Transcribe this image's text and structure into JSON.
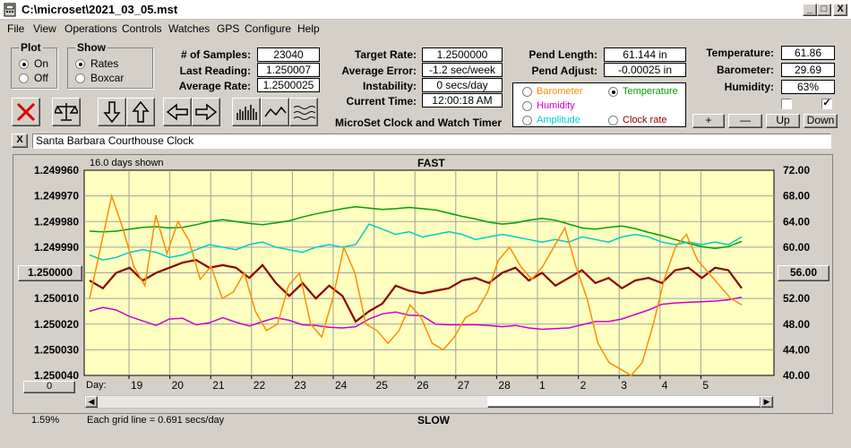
{
  "window": {
    "title": "C:\\microset\\2021_03_05.mst",
    "minimize": "_",
    "maximize": "□",
    "close": "X"
  },
  "menu": [
    "File",
    "View",
    "Operations",
    "Controls",
    "Watches",
    "GPS",
    "Configure",
    "Help"
  ],
  "plot": {
    "title": "Plot",
    "on": "On",
    "off": "Off",
    "selected": "On"
  },
  "show": {
    "title": "Show",
    "rates": "Rates",
    "boxcar": "Boxcar",
    "selected": "Rates"
  },
  "stats": {
    "samples_label": "# of Samples:",
    "samples": "23040",
    "last_label": "Last Reading:",
    "last": "1.250007",
    "avg_label": "Average Rate:",
    "avg": "1.2500025",
    "target_label": "Target Rate:",
    "target": "1.2500000",
    "avgerr_label": "Average Error:",
    "avgerr": "-1.2 sec/week",
    "instab_label": "Instability:",
    "instab": "0 secs/day",
    "time_label": "Current Time:",
    "time": "12:00:18 AM",
    "pendlen_label": "Pend Length:",
    "pendlen": "61.144 in",
    "pendadj_label": "Pend Adjust:",
    "pendadj": "-0.00025 in",
    "temp_label": "Temperature:",
    "temp": "61.86",
    "baro_label": "Barometer:",
    "baro": "29.69",
    "hum_label": "Humidity:",
    "hum": "63%"
  },
  "app_title": "MicroSet Clock and Watch Timer",
  "series_select": {
    "barometer": "Barometer",
    "temperature": "Temperature",
    "humidity": "Humidity",
    "amplitude": "Amplitude",
    "clockrate": "Clock rate",
    "selected": "Temperature"
  },
  "colors": {
    "barometer": "#ff8c00",
    "temperature": "#00a000",
    "humidity": "#cc00cc",
    "amplitude": "#00cccc",
    "clockrate": "#8b0000",
    "plot_bg": "#ffffc0"
  },
  "right_buttons": {
    "plus": "+",
    "minus": "—",
    "up": "Up",
    "down": "Down"
  },
  "clock_name": "Santa Barbara Courthouse Clock",
  "close_x": "X",
  "graph": {
    "days_shown": "16.0 days shown",
    "fast": "FAST",
    "slow": "SLOW",
    "left_button": "1.250000",
    "right_button": "56.00",
    "zero_button": "0",
    "percent": "1.59%",
    "grid_note": "Each grid line = 0.691 secs/day",
    "day_label": "Day:"
  },
  "chart_data": {
    "type": "line",
    "x_label": "Day:",
    "x_ticks": [
      "19",
      "20",
      "21",
      "22",
      "23",
      "24",
      "25",
      "26",
      "27",
      "28",
      "1",
      "2",
      "3",
      "4",
      "5"
    ],
    "y_left_ticks": [
      "1.249960",
      "1.249970",
      "1.249980",
      "1.249990",
      "1.250000",
      "1.250010",
      "1.250020",
      "1.250030",
      "1.250040"
    ],
    "y_right_ticks": [
      "72.00",
      "68.00",
      "64.00",
      "60.00",
      "56.00",
      "52.00",
      "48.00",
      "44.00",
      "40.00"
    ],
    "y_left_range": [
      1.24996,
      1.25004
    ],
    "y_right_range": [
      40,
      72
    ],
    "grid": true,
    "series": [
      {
        "name": "Temperature",
        "axis": "right",
        "color": "#00a000",
        "values": [
          62.5,
          62.4,
          62.5,
          62.8,
          63.1,
          63.2,
          63.0,
          63.1,
          63.5,
          64.0,
          64.3,
          64.0,
          63.7,
          63.5,
          63.8,
          64.1,
          64.7,
          65.2,
          65.6,
          66.0,
          66.3,
          66.1,
          65.9,
          66.0,
          66.2,
          66.0,
          65.8,
          65.3,
          64.8,
          64.4,
          63.9,
          63.6,
          63.8,
          64.2,
          64.5,
          64.2,
          63.6,
          63.0,
          62.8,
          63.1,
          63.3,
          62.9,
          62.3,
          61.8,
          61.2,
          60.6,
          60.1,
          59.8,
          60.1,
          60.9
        ]
      },
      {
        "name": "Amplitude",
        "axis": "left",
        "color": "#00cccc",
        "values": [
          1.249993,
          1.249995,
          1.249994,
          1.249992,
          1.249991,
          1.249992,
          1.249994,
          1.249993,
          1.249991,
          1.249989,
          1.24999,
          1.249991,
          1.249989,
          1.249988,
          1.24999,
          1.249991,
          1.249992,
          1.24999,
          1.249989,
          1.24999,
          1.249989,
          1.249981,
          1.249983,
          1.249985,
          1.249984,
          1.249986,
          1.249985,
          1.249984,
          1.249985,
          1.249987,
          1.249986,
          1.249985,
          1.249986,
          1.249987,
          1.249988,
          1.249987,
          1.249988,
          1.249986,
          1.249987,
          1.249988,
          1.249986,
          1.249985,
          1.249986,
          1.249988,
          1.249989,
          1.249988,
          1.249989,
          1.249988,
          1.249989,
          1.249986
        ]
      },
      {
        "name": "Clock rate",
        "axis": "left",
        "color": "#8b0000",
        "values": [
          1.250003,
          1.250006,
          1.25,
          1.249998,
          1.250003,
          1.25,
          1.249998,
          1.249996,
          1.249995,
          1.249998,
          1.249997,
          1.249998,
          1.250002,
          1.249997,
          1.250004,
          1.250009,
          1.250004,
          1.25001,
          1.250005,
          1.250009,
          1.250019,
          1.250015,
          1.250012,
          1.250005,
          1.250007,
          1.250008,
          1.250007,
          1.250006,
          1.250003,
          1.250002,
          1.250004,
          1.25,
          1.249998,
          1.250003,
          1.25,
          1.250005,
          1.250002,
          1.249999,
          1.250004,
          1.250002,
          1.250006,
          1.250003,
          1.250002,
          1.250004,
          1.249999,
          1.249998,
          1.250002,
          1.249998,
          1.249999,
          1.250006
        ]
      },
      {
        "name": "Humidity",
        "axis": "right",
        "color": "#cc00cc",
        "values": [
          50.0,
          50.6,
          50.2,
          49.2,
          48.5,
          47.8,
          48.8,
          48.9,
          47.9,
          48.2,
          49.0,
          48.3,
          47.7,
          48.4,
          49.0,
          48.6,
          47.9,
          47.8,
          47.5,
          47.4,
          47.6,
          48.8,
          49.6,
          49.9,
          49.4,
          49.3,
          48.0,
          47.9,
          47.9,
          47.9,
          47.8,
          47.6,
          47.8,
          47.4,
          47.2,
          47.3,
          47.4,
          47.9,
          48.4,
          48.4,
          48.8,
          49.5,
          50.2,
          51.1,
          51.3,
          51.4,
          51.5,
          51.6,
          51.8,
          52.2
        ]
      },
      {
        "name": "Barometer",
        "axis": "right",
        "color": "#ff8c00",
        "values": [
          52,
          60,
          68,
          63,
          57,
          54,
          65,
          59,
          64,
          61,
          55,
          57,
          52,
          53,
          56,
          50,
          47,
          48,
          54,
          56,
          48,
          46,
          52,
          60,
          56,
          48,
          47,
          45,
          47,
          51,
          49,
          45,
          44,
          46,
          49,
          50,
          53,
          58,
          60,
          57,
          55,
          57,
          60,
          63,
          57,
          52,
          45,
          42,
          41,
          40,
          42,
          48,
          55,
          60,
          62,
          58,
          56,
          54,
          52,
          51
        ]
      }
    ]
  }
}
